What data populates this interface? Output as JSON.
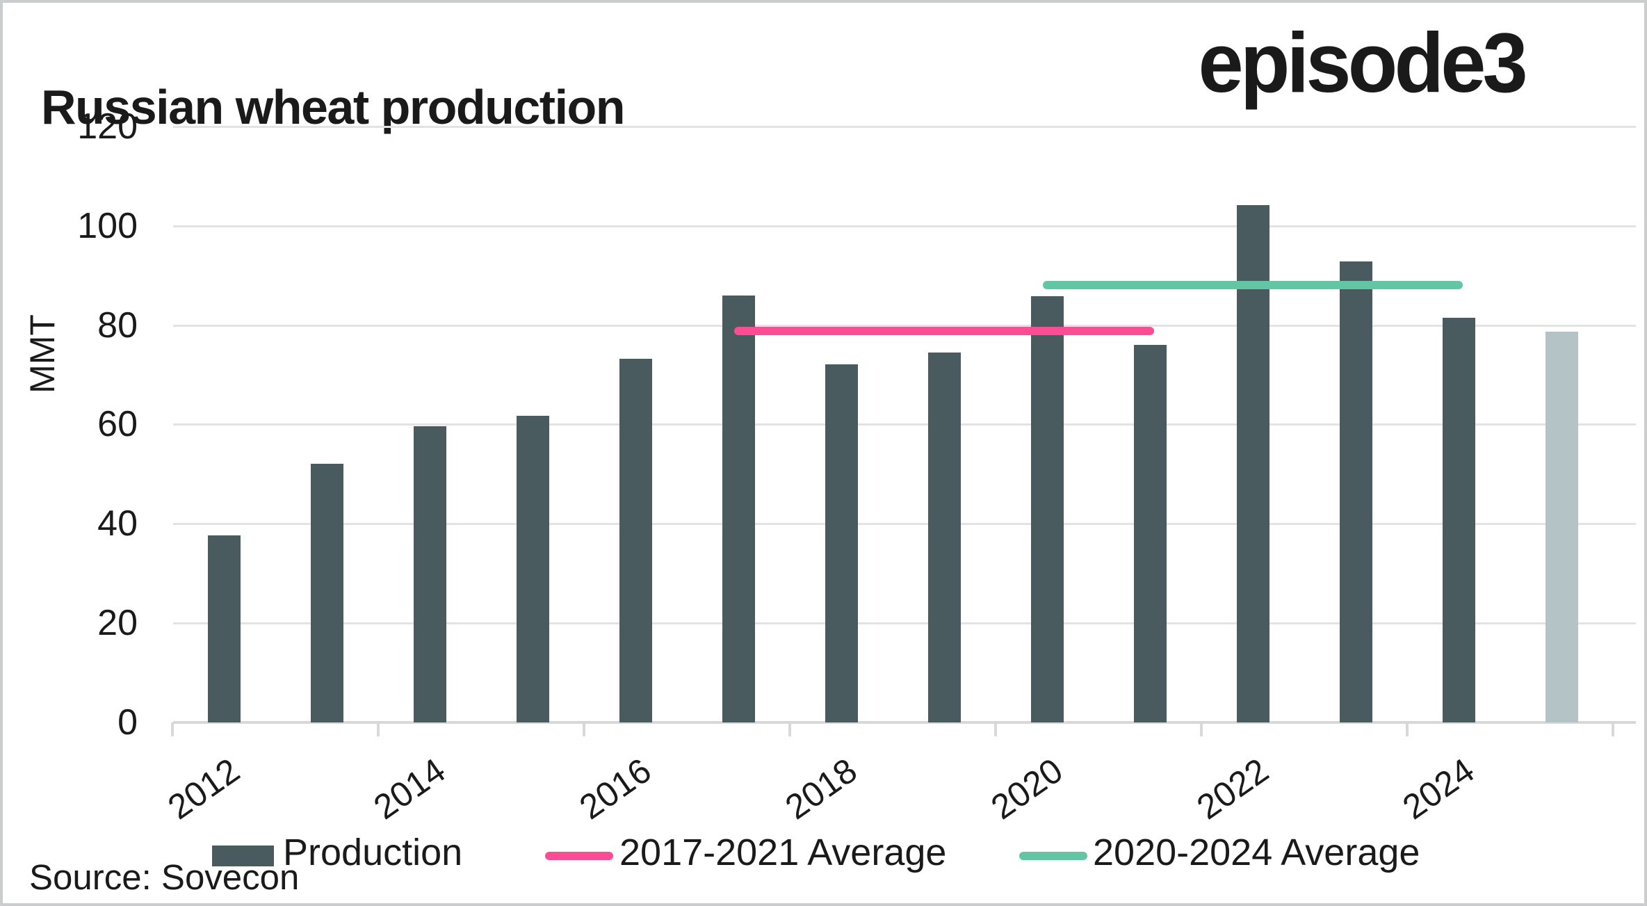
{
  "header": {
    "title": "Russian wheat production",
    "logo": "episode3"
  },
  "source": "Source: Sovecon",
  "chart_data": {
    "type": "bar",
    "title": "Russian wheat production",
    "ylabel": "MMT",
    "ylim": [
      0,
      120
    ],
    "yticks": [
      0,
      20,
      40,
      60,
      80,
      100,
      120
    ],
    "grid": "horizontal",
    "legend_position": "bottom",
    "categories": [
      2012,
      2013,
      2014,
      2015,
      2016,
      2017,
      2018,
      2019,
      2020,
      2021,
      2022,
      2023,
      2024,
      2025
    ],
    "xticklabels": [
      "2012",
      "2014",
      "2016",
      "2018",
      "2020",
      "2022",
      "2024"
    ],
    "forecast_year": 2025,
    "series": [
      {
        "name": "Production",
        "type": "bar",
        "values": [
          37.7,
          52.1,
          59.7,
          61.8,
          73.3,
          86.0,
          72.1,
          74.5,
          85.9,
          76.0,
          104.2,
          92.8,
          81.5,
          78.7
        ],
        "color": "#4A5B5F",
        "forecast_color": "#B4C3C6"
      },
      {
        "name": "2017-2021 Average",
        "type": "line",
        "value": 78.9,
        "span": [
          2017,
          2021
        ],
        "color": "#FA4D94"
      },
      {
        "name": "2020-2024 Average",
        "type": "line",
        "value": 88.1,
        "span": [
          2020,
          2024
        ],
        "color": "#62C5A3"
      }
    ]
  },
  "colors": {
    "text": "#1a1a1a",
    "gridline": "#e2e3e4",
    "axis": "#d7d8d9",
    "frame": "#c9cdce",
    "background": "#ffffff"
  }
}
